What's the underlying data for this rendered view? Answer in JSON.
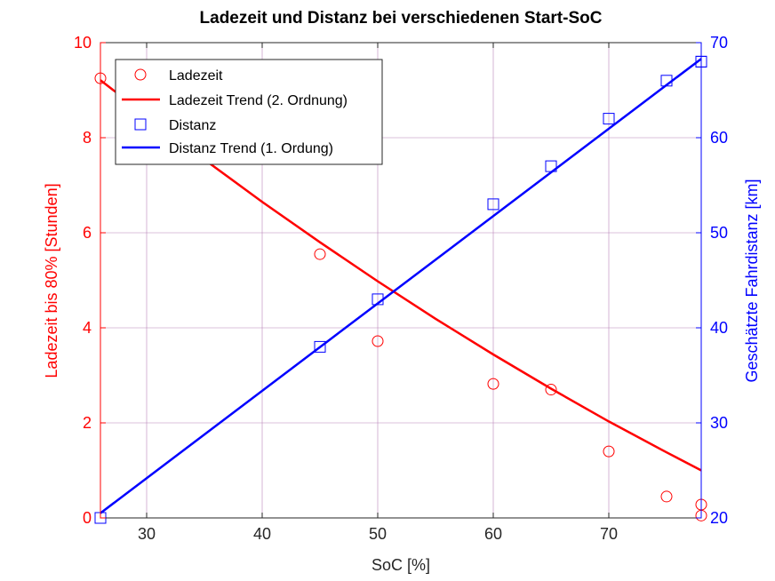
{
  "chart_data": {
    "type": "scatter",
    "title": "Ladezeit und Distanz bei verschiedenen Start-SoC",
    "xlabel": "SoC [%]",
    "ylabel_left": "Ladezeit bis 80% [Stunden]",
    "ylabel_right": "Geschätzte Fahrdistanz [km]",
    "xlim": [
      26,
      78
    ],
    "ylim_left": [
      0,
      10
    ],
    "ylim_right": [
      20,
      70
    ],
    "xticks": [
      30,
      40,
      50,
      60,
      70
    ],
    "yticks_left": [
      0,
      2,
      4,
      6,
      8,
      10
    ],
    "yticks_right": [
      20,
      30,
      40,
      50,
      60,
      70
    ],
    "grid": true,
    "legend_position": "top-left",
    "colors": {
      "left": "#ff0000",
      "right": "#0000ff",
      "grid": "#b784b7"
    },
    "series": [
      {
        "name": "Ladezeit",
        "axis": "left",
        "kind": "marker-circle",
        "color": "#ff0000",
        "x": [
          26,
          45,
          50,
          60,
          65,
          70,
          75,
          78,
          78
        ],
        "y": [
          9.25,
          5.55,
          3.72,
          2.82,
          2.7,
          1.4,
          0.45,
          0.28,
          0.05
        ]
      },
      {
        "name": "Ladezeit Trend (2. Ordnung)",
        "axis": "left",
        "kind": "line",
        "color": "#ff0000",
        "x": [
          26,
          30,
          35,
          40,
          45,
          50,
          55,
          60,
          65,
          70,
          75,
          78
        ],
        "y": [
          9.21,
          8.46,
          7.54,
          6.65,
          5.8,
          4.98,
          4.19,
          3.44,
          2.72,
          2.03,
          1.38,
          1.0
        ]
      },
      {
        "name": "Distanz",
        "axis": "right",
        "kind": "marker-square",
        "color": "#0000ff",
        "x": [
          26,
          45,
          50,
          60,
          65,
          70,
          75,
          78,
          78
        ],
        "y": [
          20,
          38,
          43,
          53,
          57,
          62,
          66,
          68,
          68
        ]
      },
      {
        "name": "Distanz Trend (1. Ordung)",
        "axis": "right",
        "kind": "line",
        "color": "#0000ff",
        "x": [
          26,
          78
        ],
        "y": [
          20.5,
          68.3
        ]
      }
    ]
  }
}
